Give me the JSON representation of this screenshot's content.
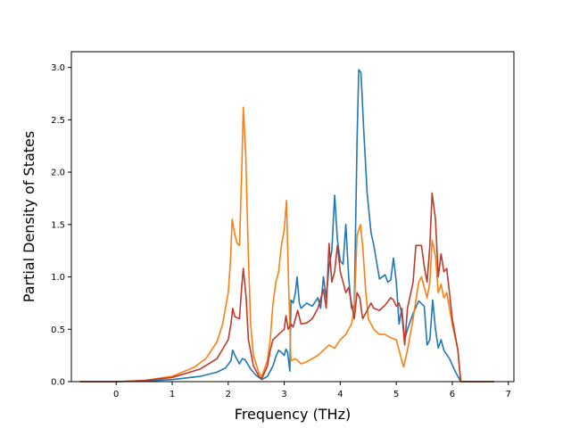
{
  "chart_data": {
    "type": "line",
    "title": "",
    "xlabel": "Frequency (THz)",
    "ylabel": "Partial Density of States",
    "xlim": [
      -0.8,
      7.1
    ],
    "ylim": [
      0.0,
      3.15
    ],
    "xticks": [
      0,
      1,
      2,
      3,
      4,
      5,
      6,
      7
    ],
    "yticks": [
      0.0,
      0.5,
      1.0,
      1.5,
      2.0,
      2.5,
      3.0
    ],
    "xtick_labels": [
      "0",
      "1",
      "2",
      "3",
      "4",
      "5",
      "6",
      "7"
    ],
    "ytick_labels": [
      "0.0",
      "0.5",
      "1.0",
      "1.5",
      "2.0",
      "2.5",
      "3.0"
    ],
    "grid": false,
    "legend": "none",
    "series": [
      {
        "color": "#1f77b4",
        "points": [
          [
            -0.65,
            0
          ],
          [
            0,
            0
          ],
          [
            0.5,
            0.005
          ],
          [
            1.0,
            0.02
          ],
          [
            1.5,
            0.05
          ],
          [
            1.8,
            0.09
          ],
          [
            1.95,
            0.13
          ],
          [
            2.05,
            0.2
          ],
          [
            2.08,
            0.3
          ],
          [
            2.12,
            0.25
          ],
          [
            2.2,
            0.17
          ],
          [
            2.25,
            0.22
          ],
          [
            2.3,
            0.21
          ],
          [
            2.4,
            0.12
          ],
          [
            2.5,
            0.06
          ],
          [
            2.6,
            0.02
          ],
          [
            2.7,
            0.05
          ],
          [
            2.8,
            0.15
          ],
          [
            2.85,
            0.24
          ],
          [
            2.9,
            0.3
          ],
          [
            2.95,
            0.28
          ],
          [
            3.0,
            0.25
          ],
          [
            3.03,
            0.31
          ],
          [
            3.06,
            0.28
          ],
          [
            3.1,
            0.1
          ],
          [
            3.12,
            0.78
          ],
          [
            3.16,
            0.75
          ],
          [
            3.2,
            0.85
          ],
          [
            3.23,
            1.0
          ],
          [
            3.27,
            0.75
          ],
          [
            3.3,
            0.7
          ],
          [
            3.4,
            0.75
          ],
          [
            3.5,
            0.72
          ],
          [
            3.6,
            0.8
          ],
          [
            3.65,
            0.7
          ],
          [
            3.7,
            1.0
          ],
          [
            3.75,
            0.8
          ],
          [
            3.8,
            1.1
          ],
          [
            3.85,
            1.25
          ],
          [
            3.9,
            1.78
          ],
          [
            3.95,
            1.35
          ],
          [
            4.0,
            1.15
          ],
          [
            4.05,
            1.12
          ],
          [
            4.1,
            1.5
          ],
          [
            4.15,
            1.0
          ],
          [
            4.2,
            0.7
          ],
          [
            4.25,
            0.72
          ],
          [
            4.3,
            2.3
          ],
          [
            4.33,
            2.98
          ],
          [
            4.37,
            2.95
          ],
          [
            4.42,
            2.4
          ],
          [
            4.48,
            1.8
          ],
          [
            4.55,
            1.42
          ],
          [
            4.6,
            1.3
          ],
          [
            4.7,
            0.98
          ],
          [
            4.8,
            1.02
          ],
          [
            4.85,
            0.95
          ],
          [
            4.9,
            0.97
          ],
          [
            4.95,
            1.18
          ],
          [
            5.0,
            0.95
          ],
          [
            5.05,
            0.55
          ],
          [
            5.1,
            0.7
          ],
          [
            5.15,
            0.4
          ],
          [
            5.2,
            0.5
          ],
          [
            5.3,
            0.65
          ],
          [
            5.4,
            0.77
          ],
          [
            5.5,
            0.72
          ],
          [
            5.55,
            0.35
          ],
          [
            5.6,
            0.4
          ],
          [
            5.65,
            0.78
          ],
          [
            5.7,
            0.5
          ],
          [
            5.75,
            0.32
          ],
          [
            5.8,
            0.4
          ],
          [
            5.85,
            0.3
          ],
          [
            5.95,
            0.22
          ],
          [
            6.05,
            0.1
          ],
          [
            6.15,
            0
          ],
          [
            6.75,
            0
          ]
        ]
      },
      {
        "color": "#ff7f0e",
        "points": [
          [
            -0.65,
            0
          ],
          [
            0,
            0
          ],
          [
            0.5,
            0.01
          ],
          [
            1.0,
            0.05
          ],
          [
            1.4,
            0.14
          ],
          [
            1.6,
            0.22
          ],
          [
            1.8,
            0.38
          ],
          [
            1.9,
            0.55
          ],
          [
            2.0,
            0.85
          ],
          [
            2.04,
            1.15
          ],
          [
            2.07,
            1.55
          ],
          [
            2.12,
            1.4
          ],
          [
            2.16,
            1.32
          ],
          [
            2.2,
            1.3
          ],
          [
            2.24,
            2.0
          ],
          [
            2.27,
            2.62
          ],
          [
            2.31,
            2.2
          ],
          [
            2.36,
            1.2
          ],
          [
            2.4,
            0.55
          ],
          [
            2.45,
            0.25
          ],
          [
            2.55,
            0.08
          ],
          [
            2.6,
            0.05
          ],
          [
            2.7,
            0.2
          ],
          [
            2.75,
            0.4
          ],
          [
            2.8,
            0.75
          ],
          [
            2.85,
            0.95
          ],
          [
            2.9,
            1.05
          ],
          [
            2.95,
            1.3
          ],
          [
            3.0,
            1.45
          ],
          [
            3.04,
            1.73
          ],
          [
            3.08,
            0.9
          ],
          [
            3.12,
            0.2
          ],
          [
            3.2,
            0.22
          ],
          [
            3.3,
            0.17
          ],
          [
            3.4,
            0.19
          ],
          [
            3.5,
            0.22
          ],
          [
            3.6,
            0.25
          ],
          [
            3.7,
            0.3
          ],
          [
            3.8,
            0.35
          ],
          [
            3.9,
            0.32
          ],
          [
            4.0,
            0.4
          ],
          [
            4.1,
            0.45
          ],
          [
            4.2,
            0.55
          ],
          [
            4.25,
            0.7
          ],
          [
            4.3,
            1.4
          ],
          [
            4.36,
            1.5
          ],
          [
            4.4,
            1.3
          ],
          [
            4.45,
            0.9
          ],
          [
            4.5,
            0.6
          ],
          [
            4.6,
            0.5
          ],
          [
            4.7,
            0.45
          ],
          [
            4.8,
            0.45
          ],
          [
            4.9,
            0.42
          ],
          [
            5.0,
            0.4
          ],
          [
            5.05,
            0.3
          ],
          [
            5.13,
            0.14
          ],
          [
            5.2,
            0.3
          ],
          [
            5.3,
            0.6
          ],
          [
            5.4,
            0.95
          ],
          [
            5.45,
            1.0
          ],
          [
            5.55,
            0.8
          ],
          [
            5.6,
            0.95
          ],
          [
            5.64,
            1.35
          ],
          [
            5.7,
            1.2
          ],
          [
            5.75,
            0.85
          ],
          [
            5.8,
            0.93
          ],
          [
            5.85,
            0.8
          ],
          [
            5.9,
            0.85
          ],
          [
            5.95,
            0.7
          ],
          [
            6.0,
            0.55
          ],
          [
            6.1,
            0.3
          ],
          [
            6.15,
            0
          ],
          [
            6.75,
            0
          ]
        ]
      },
      {
        "color": "#c0392b",
        "points": [
          [
            -0.65,
            0
          ],
          [
            0,
            0
          ],
          [
            0.5,
            0.01
          ],
          [
            1.0,
            0.04
          ],
          [
            1.5,
            0.12
          ],
          [
            1.8,
            0.22
          ],
          [
            2.0,
            0.4
          ],
          [
            2.05,
            0.55
          ],
          [
            2.08,
            0.7
          ],
          [
            2.12,
            0.62
          ],
          [
            2.2,
            0.6
          ],
          [
            2.24,
            0.9
          ],
          [
            2.27,
            1.08
          ],
          [
            2.32,
            0.8
          ],
          [
            2.36,
            0.4
          ],
          [
            2.45,
            0.15
          ],
          [
            2.55,
            0.05
          ],
          [
            2.6,
            0.03
          ],
          [
            2.7,
            0.15
          ],
          [
            2.75,
            0.3
          ],
          [
            2.8,
            0.4
          ],
          [
            2.9,
            0.45
          ],
          [
            3.0,
            0.5
          ],
          [
            3.03,
            0.63
          ],
          [
            3.07,
            0.5
          ],
          [
            3.12,
            0.55
          ],
          [
            3.16,
            0.52
          ],
          [
            3.2,
            0.6
          ],
          [
            3.24,
            0.68
          ],
          [
            3.3,
            0.55
          ],
          [
            3.4,
            0.56
          ],
          [
            3.5,
            0.6
          ],
          [
            3.6,
            0.7
          ],
          [
            3.7,
            0.88
          ],
          [
            3.75,
            0.7
          ],
          [
            3.8,
            1.32
          ],
          [
            3.85,
            0.95
          ],
          [
            3.9,
            1.05
          ],
          [
            3.95,
            1.3
          ],
          [
            4.0,
            1.05
          ],
          [
            4.05,
            0.95
          ],
          [
            4.1,
            0.85
          ],
          [
            4.15,
            0.9
          ],
          [
            4.2,
            0.75
          ],
          [
            4.25,
            0.6
          ],
          [
            4.3,
            0.85
          ],
          [
            4.35,
            0.8
          ],
          [
            4.4,
            0.6
          ],
          [
            4.45,
            0.65
          ],
          [
            4.5,
            0.7
          ],
          [
            4.55,
            0.75
          ],
          [
            4.6,
            0.7
          ],
          [
            4.7,
            0.68
          ],
          [
            4.8,
            0.73
          ],
          [
            4.9,
            0.8
          ],
          [
            4.95,
            0.78
          ],
          [
            5.0,
            0.72
          ],
          [
            5.05,
            0.75
          ],
          [
            5.1,
            0.65
          ],
          [
            5.15,
            0.35
          ],
          [
            5.2,
            0.7
          ],
          [
            5.3,
            0.95
          ],
          [
            5.35,
            1.3
          ],
          [
            5.45,
            1.3
          ],
          [
            5.5,
            1.1
          ],
          [
            5.55,
            0.95
          ],
          [
            5.6,
            1.3
          ],
          [
            5.64,
            1.8
          ],
          [
            5.7,
            1.55
          ],
          [
            5.75,
            1.0
          ],
          [
            5.8,
            1.22
          ],
          [
            5.85,
            1.05
          ],
          [
            5.9,
            1.08
          ],
          [
            5.95,
            0.85
          ],
          [
            6.0,
            0.6
          ],
          [
            6.1,
            0.3
          ],
          [
            6.15,
            0
          ],
          [
            6.75,
            0
          ]
        ]
      }
    ]
  }
}
